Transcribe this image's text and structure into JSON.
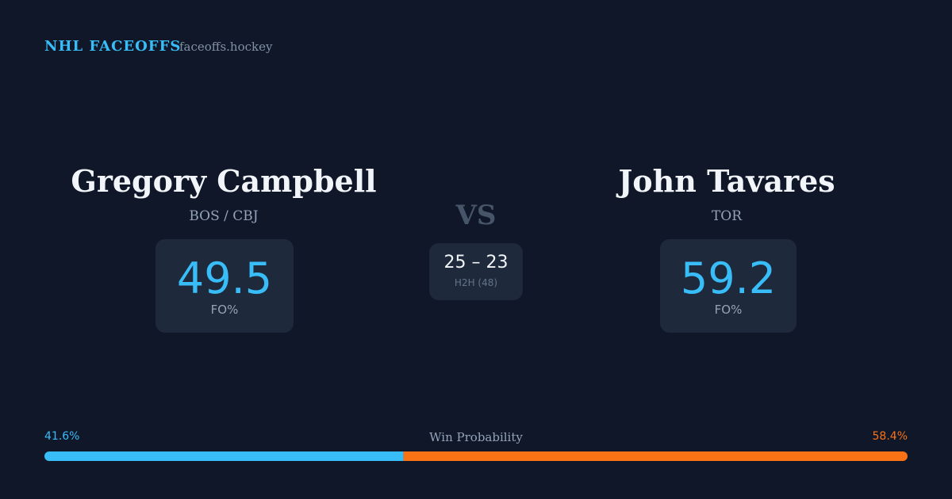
{
  "header": {
    "title": "NHL FACEOFFS",
    "site": "faceoffs.hockey"
  },
  "players": [
    {
      "name": "Gregory Campbell",
      "team": "BOS / CBJ",
      "fo_pct": 49.5,
      "fo_label": "FO%"
    },
    {
      "name": "John Tavares",
      "team": "TOR",
      "fo_pct": 59.2,
      "fo_label": "FO%"
    }
  ],
  "vs": "VS",
  "h2h": {
    "score": "25 – 23",
    "label": "H2H (48)"
  },
  "win_probability": {
    "title": "Win Probability",
    "values": [
      41.6,
      58.4
    ],
    "value_labels": [
      "41.6%",
      "58.4%"
    ],
    "colors": [
      "#38bdf8",
      "#f97316"
    ]
  }
}
